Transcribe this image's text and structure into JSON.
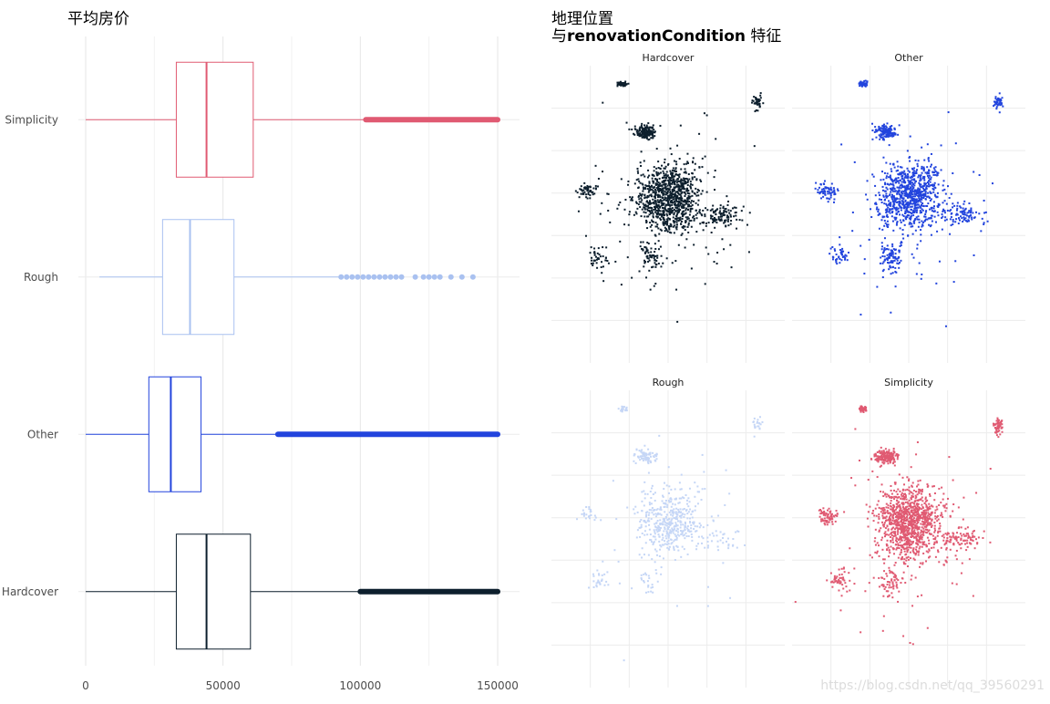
{
  "chart_data": [
    {
      "type": "boxplot",
      "title": "平均房价",
      "orientation": "horizontal",
      "xlim": [
        0,
        150000
      ],
      "x_ticks": [
        0,
        50000,
        100000,
        150000
      ],
      "x_tick_labels": [
        "0",
        "50000",
        "100000",
        "150000"
      ],
      "grid": true,
      "categories": [
        "Hardcover",
        "Other",
        "Rough",
        "Simplicity"
      ],
      "series": [
        {
          "name": "Hardcover",
          "color": "#0d1f2d",
          "min": 0,
          "q1": 33000,
          "median": 44000,
          "q3": 60000,
          "whisker_high": 100000,
          "outliers_range": [
            100000,
            150000
          ],
          "outliers": []
        },
        {
          "name": "Other",
          "color": "#2244dd",
          "min": 0,
          "q1": 23000,
          "median": 31000,
          "q3": 42000,
          "whisker_high": 70000,
          "outliers_range": [
            70000,
            150000
          ],
          "outliers": []
        },
        {
          "name": "Rough",
          "color": "#a9c1f0",
          "min": 5000,
          "q1": 28000,
          "median": 38000,
          "q3": 54000,
          "whisker_high": 93000,
          "outliers_range": [],
          "outliers": [
            93000,
            95000,
            97000,
            99000,
            101000,
            103000,
            105000,
            107000,
            109000,
            111000,
            113000,
            115000,
            120000,
            123000,
            125000,
            127000,
            129000,
            133000,
            137000,
            141000
          ]
        },
        {
          "name": "Simplicity",
          "color": "#e05a72",
          "min": 0,
          "q1": 33000,
          "median": 44000,
          "q3": 61000,
          "whisker_high": 102000,
          "outliers_range": [
            102000,
            150000
          ],
          "outliers": []
        }
      ]
    },
    {
      "type": "scatter",
      "title_line1": "地理位置",
      "title_line2_prefix": "与",
      "title_line2_bold": "renovationCondition",
      "title_line2_suffix": " 特征",
      "facets": [
        {
          "name": "Hardcover",
          "color": "#0d1f2d",
          "density": 1.0
        },
        {
          "name": "Other",
          "color": "#2244dd",
          "density": 0.9
        },
        {
          "name": "Rough",
          "color": "#c5d6f6",
          "density": 0.45
        },
        {
          "name": "Simplicity",
          "color": "#e05a72",
          "density": 1.1
        }
      ]
    }
  ],
  "watermark": "https://blog.csdn.net/qq_39560291"
}
